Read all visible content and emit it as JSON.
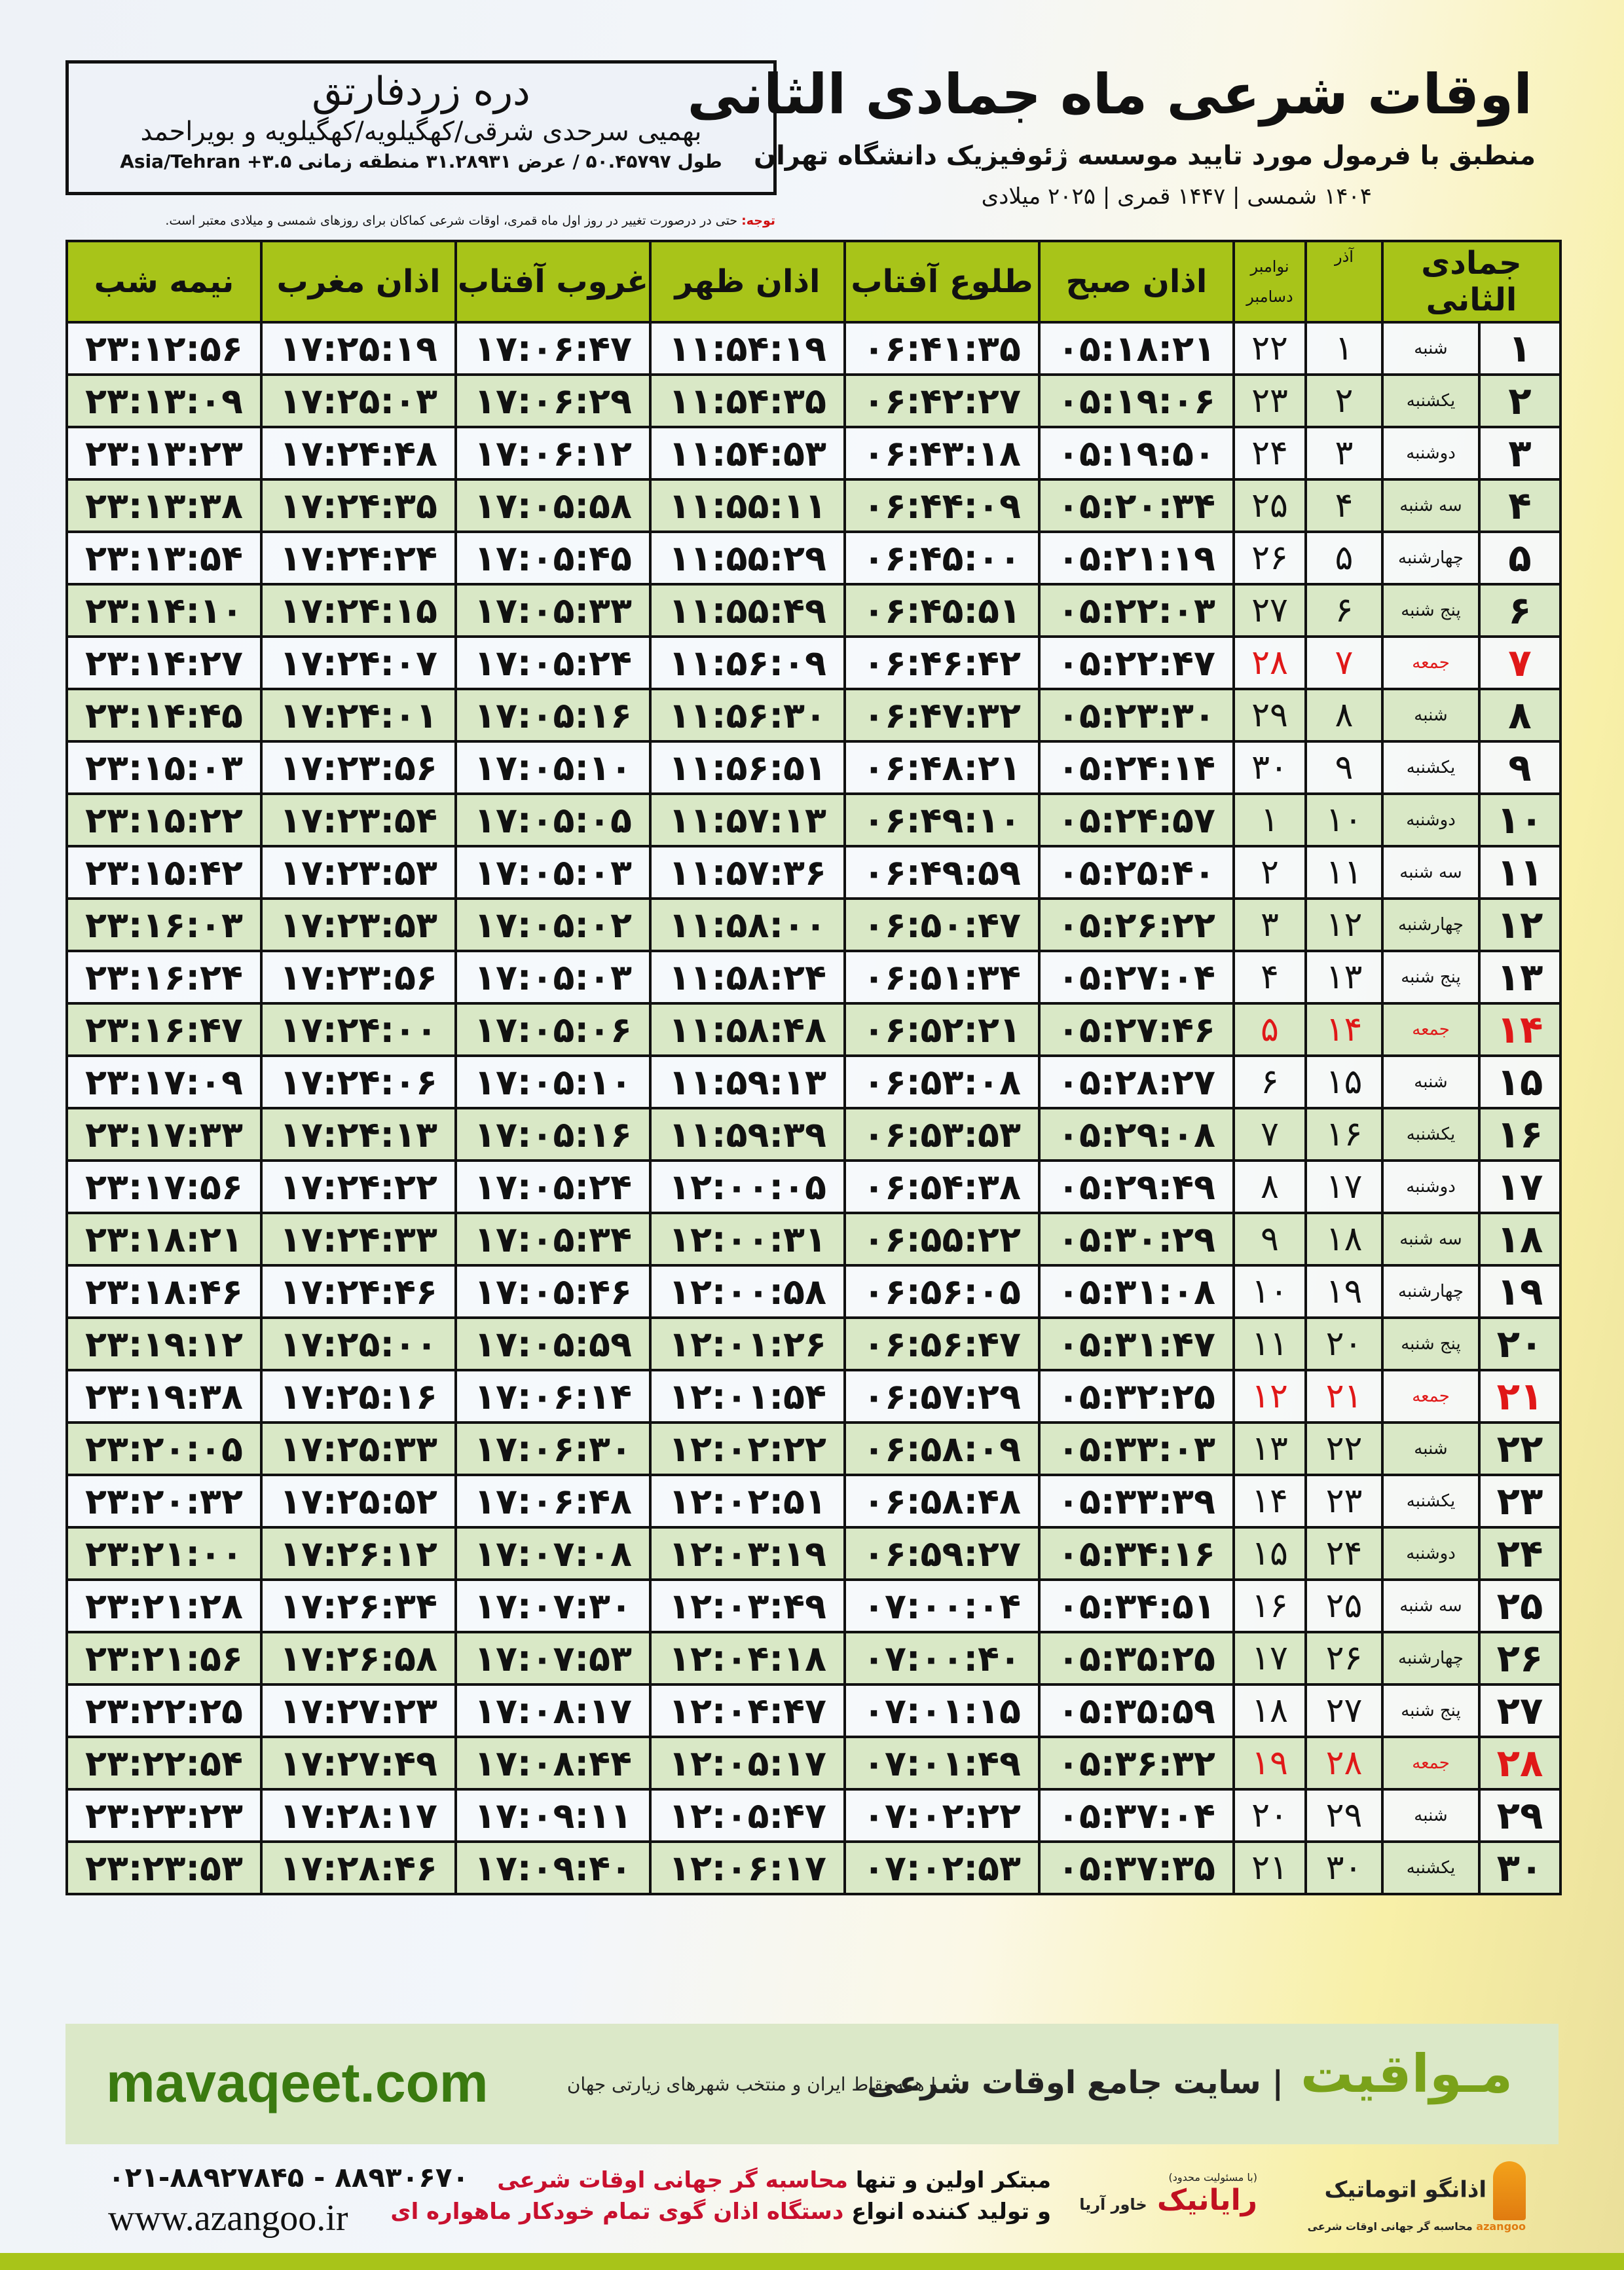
{
  "location": {
    "city": "دره زردفارتق",
    "province": "بهمیی سرحدی شرقی/کهگیلویه/کهگیلویه و بویراحمد",
    "coordinates": "طول ۵۰.۴۵۷۹۷ / عرض ۳۱.۲۸۹۳۱ منطقه زمانی ۳.۵+ Asia/Tehran"
  },
  "header": {
    "title": "اوقات شرعی ماه جمادی الثانی",
    "subtitle": "منطبق با فرمول مورد تایید موسسه ژئوفیزیک دانشگاه تهران",
    "years": "۱۴۰۴ شمسی | ۱۴۴۷ قمری | ۲۰۲۵ میلادی"
  },
  "note": {
    "label": "توجه:",
    "text": " حتی در درصورت تغییر در روز اول ماه قمری، اوقات شرعی کماکان برای روزهای شمسی و میلادی معتبر است."
  },
  "colors": {
    "header_green": "#a8c419",
    "row_green": "#d9e8c6",
    "friday_red": "#e01818"
  },
  "table": {
    "headers": {
      "hijri": "جمادی الثانی",
      "azar": "آذر",
      "greg_1": "نوامبر",
      "greg_2": "دسامبر",
      "sobh": "اذان صبح",
      "tolu": "طلوع آفتاب",
      "zohr": "اذان ظهر",
      "ghorub": "غروب آفتاب",
      "maghreb": "اذان مغرب",
      "nime": "نیمه شب"
    },
    "rows": [
      [
        "۱",
        "شنبه",
        "۱",
        "۲۲",
        "۰۵:۱۸:۲۱",
        "۰۶:۴۱:۳۵",
        "۱۱:۵۴:۱۹",
        "۱۷:۰۶:۴۷",
        "۱۷:۲۵:۱۹",
        "۲۳:۱۲:۵۶"
      ],
      [
        "۲",
        "یکشنبه",
        "۲",
        "۲۳",
        "۰۵:۱۹:۰۶",
        "۰۶:۴۲:۲۷",
        "۱۱:۵۴:۳۵",
        "۱۷:۰۶:۲۹",
        "۱۷:۲۵:۰۳",
        "۲۳:۱۳:۰۹"
      ],
      [
        "۳",
        "دوشنبه",
        "۳",
        "۲۴",
        "۰۵:۱۹:۵۰",
        "۰۶:۴۳:۱۸",
        "۱۱:۵۴:۵۳",
        "۱۷:۰۶:۱۲",
        "۱۷:۲۴:۴۸",
        "۲۳:۱۳:۲۳"
      ],
      [
        "۴",
        "سه شنبه",
        "۴",
        "۲۵",
        "۰۵:۲۰:۳۴",
        "۰۶:۴۴:۰۹",
        "۱۱:۵۵:۱۱",
        "۱۷:۰۵:۵۸",
        "۱۷:۲۴:۳۵",
        "۲۳:۱۳:۳۸"
      ],
      [
        "۵",
        "چهارشنبه",
        "۵",
        "۲۶",
        "۰۵:۲۱:۱۹",
        "۰۶:۴۵:۰۰",
        "۱۱:۵۵:۲۹",
        "۱۷:۰۵:۴۵",
        "۱۷:۲۴:۲۴",
        "۲۳:۱۳:۵۴"
      ],
      [
        "۶",
        "پنج شنبه",
        "۶",
        "۲۷",
        "۰۵:۲۲:۰۳",
        "۰۶:۴۵:۵۱",
        "۱۱:۵۵:۴۹",
        "۱۷:۰۵:۳۳",
        "۱۷:۲۴:۱۵",
        "۲۳:۱۴:۱۰"
      ],
      [
        "۷",
        "جمعه",
        "۷",
        "۲۸",
        "۰۵:۲۲:۴۷",
        "۰۶:۴۶:۴۲",
        "۱۱:۵۶:۰۹",
        "۱۷:۰۵:۲۴",
        "۱۷:۲۴:۰۷",
        "۲۳:۱۴:۲۷"
      ],
      [
        "۸",
        "شنبه",
        "۸",
        "۲۹",
        "۰۵:۲۳:۳۰",
        "۰۶:۴۷:۳۲",
        "۱۱:۵۶:۳۰",
        "۱۷:۰۵:۱۶",
        "۱۷:۲۴:۰۱",
        "۲۳:۱۴:۴۵"
      ],
      [
        "۹",
        "یکشنبه",
        "۹",
        "۳۰",
        "۰۵:۲۴:۱۴",
        "۰۶:۴۸:۲۱",
        "۱۱:۵۶:۵۱",
        "۱۷:۰۵:۱۰",
        "۱۷:۲۳:۵۶",
        "۲۳:۱۵:۰۳"
      ],
      [
        "۱۰",
        "دوشنبه",
        "۱۰",
        "۱",
        "۰۵:۲۴:۵۷",
        "۰۶:۴۹:۱۰",
        "۱۱:۵۷:۱۳",
        "۱۷:۰۵:۰۵",
        "۱۷:۲۳:۵۴",
        "۲۳:۱۵:۲۲"
      ],
      [
        "۱۱",
        "سه شنبه",
        "۱۱",
        "۲",
        "۰۵:۲۵:۴۰",
        "۰۶:۴۹:۵۹",
        "۱۱:۵۷:۳۶",
        "۱۷:۰۵:۰۳",
        "۱۷:۲۳:۵۳",
        "۲۳:۱۵:۴۲"
      ],
      [
        "۱۲",
        "چهارشنبه",
        "۱۲",
        "۳",
        "۰۵:۲۶:۲۲",
        "۰۶:۵۰:۴۷",
        "۱۱:۵۸:۰۰",
        "۱۷:۰۵:۰۲",
        "۱۷:۲۳:۵۳",
        "۲۳:۱۶:۰۳"
      ],
      [
        "۱۳",
        "پنج شنبه",
        "۱۳",
        "۴",
        "۰۵:۲۷:۰۴",
        "۰۶:۵۱:۳۴",
        "۱۱:۵۸:۲۴",
        "۱۷:۰۵:۰۳",
        "۱۷:۲۳:۵۶",
        "۲۳:۱۶:۲۴"
      ],
      [
        "۱۴",
        "جمعه",
        "۱۴",
        "۵",
        "۰۵:۲۷:۴۶",
        "۰۶:۵۲:۲۱",
        "۱۱:۵۸:۴۸",
        "۱۷:۰۵:۰۶",
        "۱۷:۲۴:۰۰",
        "۲۳:۱۶:۴۷"
      ],
      [
        "۱۵",
        "شنبه",
        "۱۵",
        "۶",
        "۰۵:۲۸:۲۷",
        "۰۶:۵۳:۰۸",
        "۱۱:۵۹:۱۳",
        "۱۷:۰۵:۱۰",
        "۱۷:۲۴:۰۶",
        "۲۳:۱۷:۰۹"
      ],
      [
        "۱۶",
        "یکشنبه",
        "۱۶",
        "۷",
        "۰۵:۲۹:۰۸",
        "۰۶:۵۳:۵۳",
        "۱۱:۵۹:۳۹",
        "۱۷:۰۵:۱۶",
        "۱۷:۲۴:۱۳",
        "۲۳:۱۷:۳۳"
      ],
      [
        "۱۷",
        "دوشنبه",
        "۱۷",
        "۸",
        "۰۵:۲۹:۴۹",
        "۰۶:۵۴:۳۸",
        "۱۲:۰۰:۰۵",
        "۱۷:۰۵:۲۴",
        "۱۷:۲۴:۲۲",
        "۲۳:۱۷:۵۶"
      ],
      [
        "۱۸",
        "سه شنبه",
        "۱۸",
        "۹",
        "۰۵:۳۰:۲۹",
        "۰۶:۵۵:۲۲",
        "۱۲:۰۰:۳۱",
        "۱۷:۰۵:۳۴",
        "۱۷:۲۴:۳۳",
        "۲۳:۱۸:۲۱"
      ],
      [
        "۱۹",
        "چهارشنبه",
        "۱۹",
        "۱۰",
        "۰۵:۳۱:۰۸",
        "۰۶:۵۶:۰۵",
        "۱۲:۰۰:۵۸",
        "۱۷:۰۵:۴۶",
        "۱۷:۲۴:۴۶",
        "۲۳:۱۸:۴۶"
      ],
      [
        "۲۰",
        "پنج شنبه",
        "۲۰",
        "۱۱",
        "۰۵:۳۱:۴۷",
        "۰۶:۵۶:۴۷",
        "۱۲:۰۱:۲۶",
        "۱۷:۰۵:۵۹",
        "۱۷:۲۵:۰۰",
        "۲۳:۱۹:۱۲"
      ],
      [
        "۲۱",
        "جمعه",
        "۲۱",
        "۱۲",
        "۰۵:۳۲:۲۵",
        "۰۶:۵۷:۲۹",
        "۱۲:۰۱:۵۴",
        "۱۷:۰۶:۱۴",
        "۱۷:۲۵:۱۶",
        "۲۳:۱۹:۳۸"
      ],
      [
        "۲۲",
        "شنبه",
        "۲۲",
        "۱۳",
        "۰۵:۳۳:۰۳",
        "۰۶:۵۸:۰۹",
        "۱۲:۰۲:۲۲",
        "۱۷:۰۶:۳۰",
        "۱۷:۲۵:۳۳",
        "۲۳:۲۰:۰۵"
      ],
      [
        "۲۳",
        "یکشنبه",
        "۲۳",
        "۱۴",
        "۰۵:۳۳:۳۹",
        "۰۶:۵۸:۴۸",
        "۱۲:۰۲:۵۱",
        "۱۷:۰۶:۴۸",
        "۱۷:۲۵:۵۲",
        "۲۳:۲۰:۳۲"
      ],
      [
        "۲۴",
        "دوشنبه",
        "۲۴",
        "۱۵",
        "۰۵:۳۴:۱۶",
        "۰۶:۵۹:۲۷",
        "۱۲:۰۳:۱۹",
        "۱۷:۰۷:۰۸",
        "۱۷:۲۶:۱۲",
        "۲۳:۲۱:۰۰"
      ],
      [
        "۲۵",
        "سه شنبه",
        "۲۵",
        "۱۶",
        "۰۵:۳۴:۵۱",
        "۰۷:۰۰:۰۴",
        "۱۲:۰۳:۴۹",
        "۱۷:۰۷:۳۰",
        "۱۷:۲۶:۳۴",
        "۲۳:۲۱:۲۸"
      ],
      [
        "۲۶",
        "چهارشنبه",
        "۲۶",
        "۱۷",
        "۰۵:۳۵:۲۵",
        "۰۷:۰۰:۴۰",
        "۱۲:۰۴:۱۸",
        "۱۷:۰۷:۵۳",
        "۱۷:۲۶:۵۸",
        "۲۳:۲۱:۵۶"
      ],
      [
        "۲۷",
        "پنج شنبه",
        "۲۷",
        "۱۸",
        "۰۵:۳۵:۵۹",
        "۰۷:۰۱:۱۵",
        "۱۲:۰۴:۴۷",
        "۱۷:۰۸:۱۷",
        "۱۷:۲۷:۲۳",
        "۲۳:۲۲:۲۵"
      ],
      [
        "۲۸",
        "جمعه",
        "۲۸",
        "۱۹",
        "۰۵:۳۶:۳۲",
        "۰۷:۰۱:۴۹",
        "۱۲:۰۵:۱۷",
        "۱۷:۰۸:۴۴",
        "۱۷:۲۷:۴۹",
        "۲۳:۲۲:۵۴"
      ],
      [
        "۲۹",
        "شنبه",
        "۲۹",
        "۲۰",
        "۰۵:۳۷:۰۴",
        "۰۷:۰۲:۲۲",
        "۱۲:۰۵:۴۷",
        "۱۷:۰۹:۱۱",
        "۱۷:۲۸:۱۷",
        "۲۳:۲۳:۲۳"
      ],
      [
        "۳۰",
        "یکشنبه",
        "۳۰",
        "۲۱",
        "۰۵:۳۷:۳۵",
        "۰۷:۰۲:۵۳",
        "۱۲:۰۶:۱۷",
        "۱۷:۰۹:۴۰",
        "۱۷:۲۸:۴۶",
        "۲۳:۲۳:۵۳"
      ]
    ]
  },
  "banner": {
    "brand": "مـواقیت",
    "slogan": "| سایت جامع اوقات شرعی",
    "slogan2": "| همه نقاط ایران و منتخب شهرهای زیارتی جهان",
    "site": "mavaqeet.com"
  },
  "footer": {
    "logo1": "اذانگو اتوماتیک",
    "logo1_sub": "azangoo",
    "logo1_tag": "محاسبه گر جهانی اوقات شرعی",
    "logo2_a": "رایانیک",
    "logo2_b": "خاور آریا",
    "logo2_tag": "(با مسئولیت محدود)",
    "line1_a": "مبتکر اولین و تنها ",
    "line1_b": "محاسبه گر جهانی اوقات شرعی",
    "line2_a": "و تولید کننده انواع ",
    "line2_b": "دستگاه اذان گوی تمام خودکار ماهواره ای",
    "phone": "۰۲۱-۸۸۹۲۷۸۴۵ - ۸۸۹۳۰۶۷۰",
    "web": "www.azangoo.ir"
  }
}
